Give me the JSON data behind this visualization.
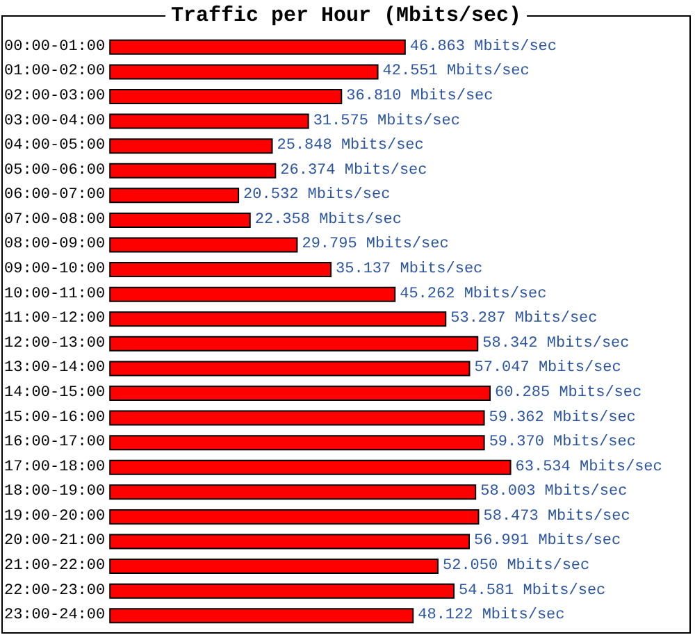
{
  "chart_data": {
    "type": "bar",
    "orientation": "horizontal",
    "title": "Traffic per Hour (Mbits/sec)",
    "categories": [
      "00:00-01:00",
      "01:00-02:00",
      "02:00-03:00",
      "03:00-04:00",
      "04:00-05:00",
      "05:00-06:00",
      "06:00-07:00",
      "07:00-08:00",
      "08:00-09:00",
      "09:00-10:00",
      "10:00-11:00",
      "11:00-12:00",
      "12:00-13:00",
      "13:00-14:00",
      "14:00-15:00",
      "15:00-16:00",
      "16:00-17:00",
      "17:00-18:00",
      "18:00-19:00",
      "19:00-20:00",
      "20:00-21:00",
      "21:00-22:00",
      "22:00-23:00",
      "23:00-24:00"
    ],
    "values": [
      46.863,
      42.551,
      36.81,
      31.575,
      25.848,
      26.374,
      20.532,
      22.358,
      29.795,
      35.137,
      45.262,
      53.287,
      58.342,
      57.047,
      60.285,
      59.362,
      59.37,
      63.534,
      58.003,
      58.473,
      56.991,
      52.05,
      54.581,
      48.122
    ],
    "value_labels": [
      "46.863 Mbits/sec",
      "42.551 Mbits/sec",
      "36.810 Mbits/sec",
      "31.575 Mbits/sec",
      "25.848 Mbits/sec",
      "26.374 Mbits/sec",
      "20.532 Mbits/sec",
      "22.358 Mbits/sec",
      "29.795 Mbits/sec",
      "35.137 Mbits/sec",
      "45.262 Mbits/sec",
      "53.287 Mbits/sec",
      "58.342 Mbits/sec",
      "57.047 Mbits/sec",
      "60.285 Mbits/sec",
      "59.362 Mbits/sec",
      "59.370 Mbits/sec",
      "63.534 Mbits/sec",
      "58.003 Mbits/sec",
      "58.473 Mbits/sec",
      "56.991 Mbits/sec",
      "52.050 Mbits/sec",
      "54.581 Mbits/sec",
      "48.122 Mbits/sec"
    ],
    "color": "#ff0000"
  }
}
